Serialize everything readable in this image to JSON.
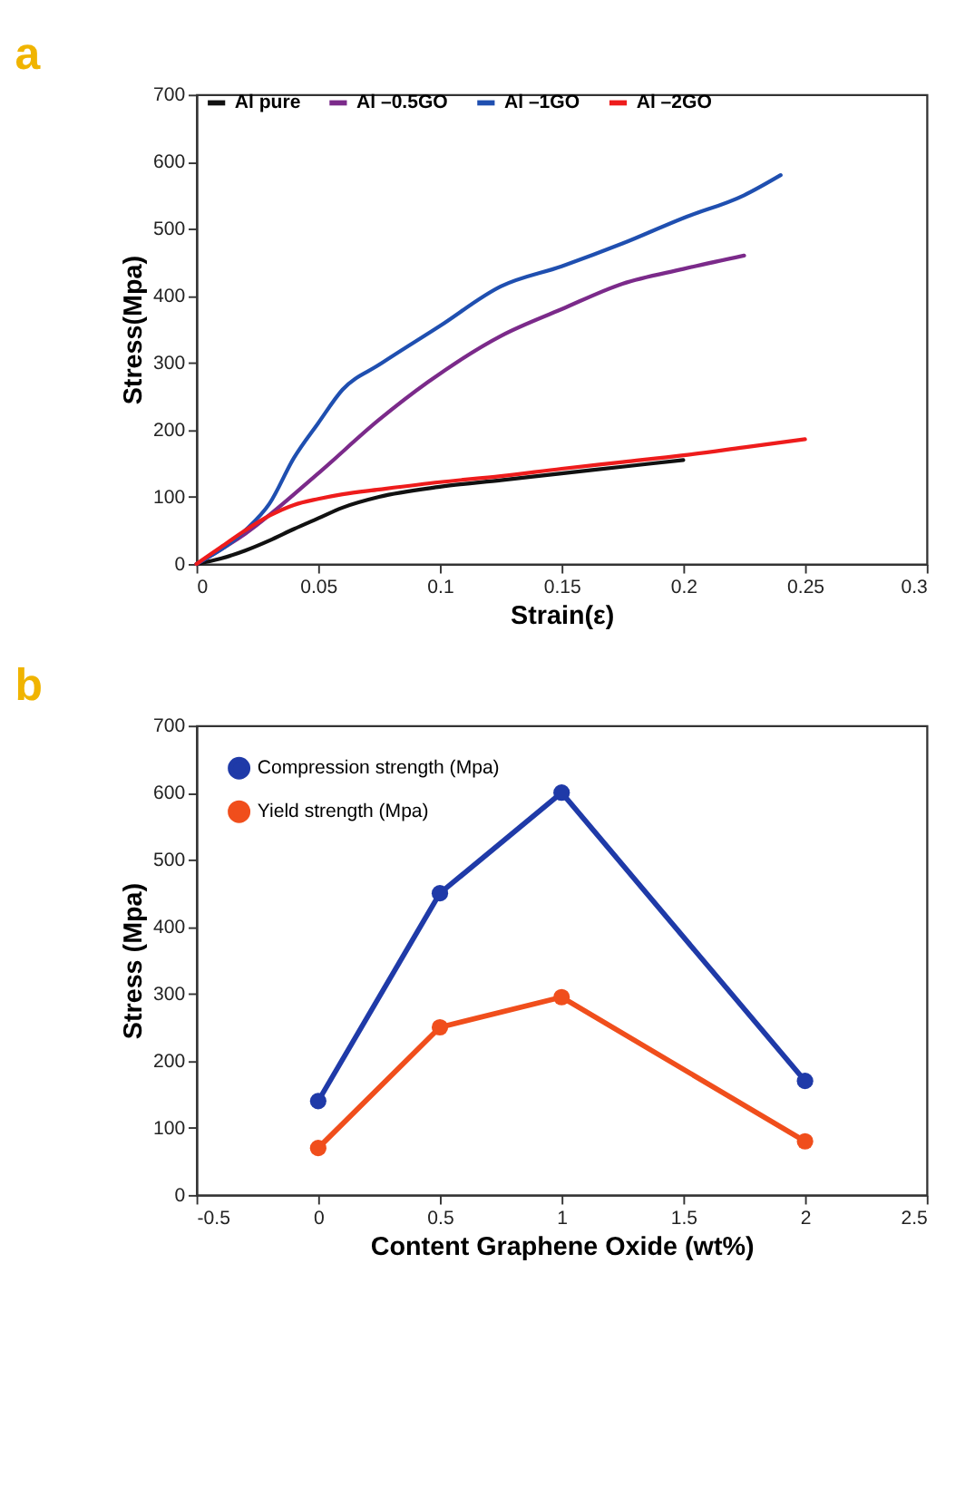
{
  "chart_data": [
    {
      "type": "line",
      "title": "a",
      "xlabel": "Strain(ε)",
      "ylabel": "Stress(Mpa)",
      "xlim": [
        0,
        0.3
      ],
      "ylim": [
        0,
        700
      ],
      "xticks": [
        0,
        0.05,
        0.1,
        0.15,
        0.2,
        0.25,
        0.3
      ],
      "yticks": [
        0,
        100,
        200,
        300,
        400,
        500,
        600,
        700
      ],
      "grid": false,
      "legend": "top",
      "marker": "none",
      "line_style": "solid",
      "series": [
        {
          "name": "Al pure",
          "color": "#111111",
          "x": [
            0,
            0.01,
            0.02,
            0.03,
            0.04,
            0.05,
            0.06,
            0.075,
            0.1,
            0.125,
            0.15,
            0.175,
            0.2
          ],
          "values": [
            0,
            8,
            20,
            35,
            52,
            68,
            84,
            100,
            115,
            125,
            135,
            145,
            155
          ]
        },
        {
          "name": "Al –0.5GO",
          "color": "#7b2a8a",
          "x": [
            0,
            0.02,
            0.05,
            0.075,
            0.095,
            0.125,
            0.15,
            0.175,
            0.2,
            0.225
          ],
          "values": [
            0,
            45,
            135,
            215,
            271,
            340,
            380,
            418,
            440,
            460
          ]
        },
        {
          "name": "Al –1GO",
          "color": "#1f4fb0",
          "x": [
            0,
            0.02,
            0.03,
            0.04,
            0.05,
            0.06,
            0.075,
            0.1,
            0.125,
            0.15,
            0.175,
            0.2,
            0.225,
            0.24
          ],
          "values": [
            0,
            50,
            90,
            158,
            210,
            260,
            297,
            355,
            414,
            444,
            478,
            516,
            550,
            580
          ]
        },
        {
          "name": "Al –2GO",
          "color": "#ee1c1c",
          "x": [
            0,
            0.01,
            0.02,
            0.03,
            0.04,
            0.05,
            0.06,
            0.075,
            0.1,
            0.125,
            0.15,
            0.175,
            0.2,
            0.225,
            0.25
          ],
          "values": [
            0,
            25,
            50,
            72,
            88,
            97,
            104,
            111,
            122,
            131,
            142,
            152,
            162,
            174,
            186
          ]
        }
      ]
    },
    {
      "type": "line",
      "title": "b",
      "xlabel": "Content Graphene Oxide (wt%)",
      "ylabel": "Stress (Mpa)",
      "xlim": [
        -0.5,
        2.5
      ],
      "ylim": [
        0,
        700
      ],
      "xticks": [
        -0.5,
        0,
        0.5,
        1,
        1.5,
        2,
        2.5
      ],
      "yticks": [
        0,
        100,
        200,
        300,
        400,
        500,
        600,
        700
      ],
      "grid": false,
      "legend": "top left",
      "marker": "circle",
      "line_style": "solid",
      "x": [
        0,
        0.5,
        1,
        2
      ],
      "series": [
        {
          "name": "Compression strength (Mpa)",
          "color": "#1f3aa8",
          "values": [
            140,
            450,
            600,
            170
          ]
        },
        {
          "name": "Yield strength (Mpa)",
          "color": "#f04e1c",
          "values": [
            70,
            250,
            295,
            80
          ]
        }
      ]
    }
  ]
}
